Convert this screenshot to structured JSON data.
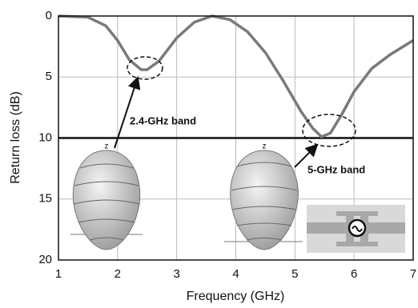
{
  "chart_data": {
    "type": "line",
    "xlabel": "Frequency (GHz)",
    "ylabel": "Return loss (dB)",
    "x": [
      1,
      1.5,
      1.8,
      2.0,
      2.2,
      2.4,
      2.5,
      2.7,
      3.0,
      3.3,
      3.6,
      3.9,
      4.2,
      4.5,
      4.8,
      5.1,
      5.3,
      5.45,
      5.6,
      5.8,
      6.0,
      6.3,
      6.6,
      7
    ],
    "series": [
      {
        "color": "#7a7a7a",
        "values": [
          0,
          0.1,
          0.8,
          2.0,
          3.6,
          4.4,
          4.4,
          3.7,
          1.8,
          0.5,
          0,
          0.3,
          1.3,
          3.0,
          5.3,
          7.8,
          9.2,
          9.9,
          9.6,
          8.0,
          6.2,
          4.3,
          3.2,
          2.0
        ]
      }
    ],
    "xlim": [
      1,
      7
    ],
    "ylim": [
      0,
      20
    ],
    "y_inverted": true,
    "xticks": [
      1,
      2,
      3,
      4,
      5,
      6,
      7
    ],
    "yticks": [
      0,
      5,
      10,
      15,
      20
    ],
    "grid": true,
    "threshold": 10,
    "annotations": [
      "2.4-GHz band",
      "5-GHz band"
    ],
    "pattern_axis_label": "z"
  }
}
